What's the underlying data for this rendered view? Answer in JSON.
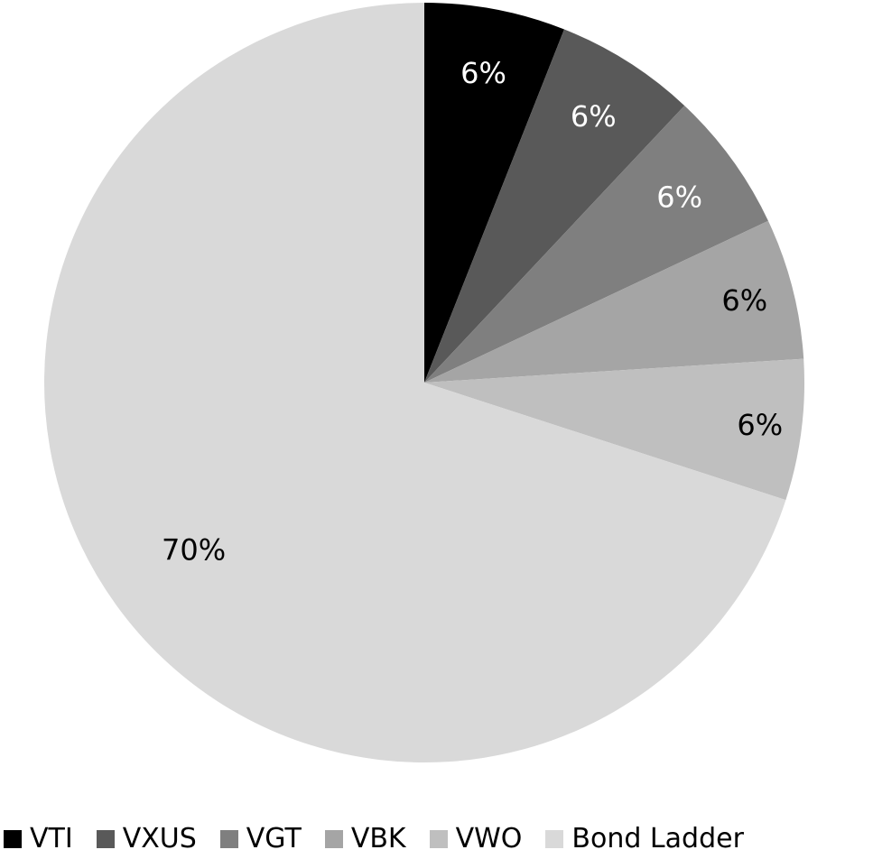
{
  "chart_data": {
    "type": "pie",
    "title": "",
    "categories": [
      "VTI",
      "VXUS",
      "VGT",
      "VBK",
      "VWO",
      "Bond Ladder"
    ],
    "values": [
      6,
      6,
      6,
      6,
      6,
      70
    ],
    "data_labels": [
      "6%",
      "6%",
      "6%",
      "6%",
      "6%",
      "70%"
    ],
    "colors": [
      "#000000",
      "#595959",
      "#7f7f7f",
      "#a5a5a5",
      "#bfbfbf",
      "#d9d9d9"
    ],
    "label_colors": [
      "#ffffff",
      "#ffffff",
      "#ffffff",
      "#000000",
      "#000000",
      "#000000"
    ],
    "start_angle_deg": 0,
    "direction": "clockwise",
    "legend_position": "bottom"
  },
  "legend": {
    "items": [
      {
        "label": "VTI",
        "color": "#000000"
      },
      {
        "label": "VXUS",
        "color": "#595959"
      },
      {
        "label": "VGT",
        "color": "#7f7f7f"
      },
      {
        "label": "VBK",
        "color": "#a5a5a5"
      },
      {
        "label": "VWO",
        "color": "#bfbfbf"
      },
      {
        "label": "Bond Ladder",
        "color": "#d9d9d9"
      }
    ]
  }
}
